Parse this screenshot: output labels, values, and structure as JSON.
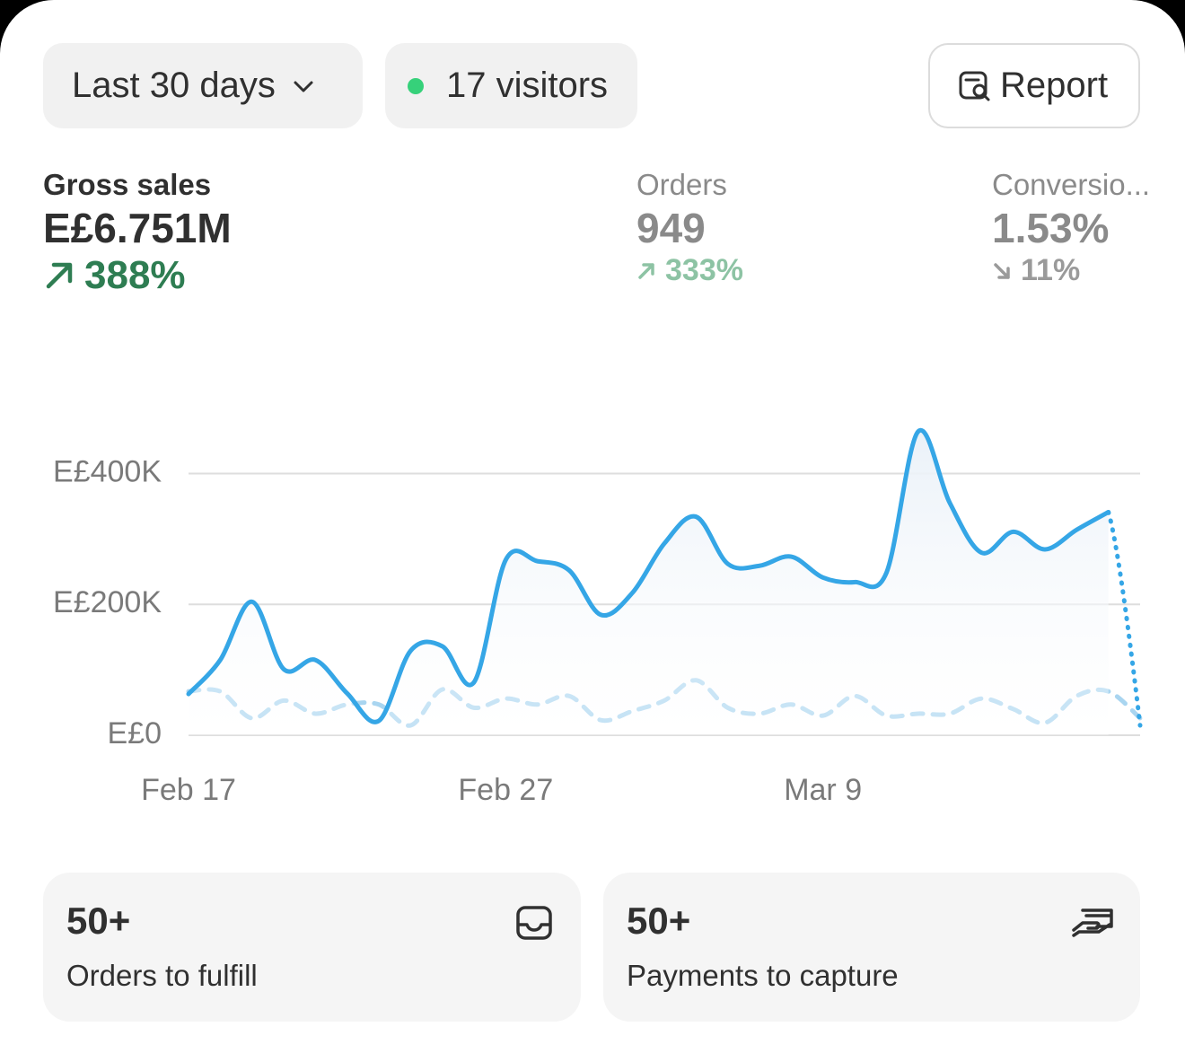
{
  "toolbar": {
    "range": "Last 30 days",
    "visitors": "17 visitors",
    "report": "Report"
  },
  "metrics": [
    {
      "label": "Gross sales",
      "value": "E£6.751M",
      "change": "388%",
      "direction": "up"
    },
    {
      "label": "Orders",
      "value": "949",
      "change": "333%",
      "direction": "up"
    },
    {
      "label": "Conversio...",
      "value": "1.53%",
      "change": "11%",
      "direction": "down"
    }
  ],
  "chart_data": {
    "type": "line",
    "categories": [
      "Feb 17",
      null,
      null,
      null,
      null,
      null,
      null,
      null,
      null,
      null,
      "Feb 27",
      null,
      null,
      null,
      null,
      null,
      null,
      null,
      null,
      null,
      "Mar 9",
      null,
      null,
      null,
      null,
      null,
      null,
      null,
      null,
      null,
      null
    ],
    "series": [
      {
        "color": "#35a6e6",
        "line_style": "solid",
        "values": [
          63000,
          115000,
          204000,
          101000,
          115000,
          64000,
          22000,
          129000,
          136000,
          81000,
          268000,
          266000,
          252000,
          184000,
          218000,
          293000,
          334000,
          262000,
          259000,
          273000,
          241000,
          234000,
          248000,
          464000,
          355000,
          279000,
          311000,
          284000,
          314000,
          341000,
          15000
        ]
      },
      {
        "color": "#a9d5f0",
        "line_style": "dashed",
        "values": [
          67000,
          67000,
          26000,
          53000,
          33000,
          47000,
          47000,
          15000,
          70000,
          42000,
          56000,
          47000,
          60000,
          23000,
          37000,
          53000,
          84000,
          42000,
          33000,
          47000,
          30000,
          60000,
          30000,
          33000,
          33000,
          56000,
          40000,
          19000,
          60000,
          67000,
          26000
        ]
      }
    ],
    "ylim": [
      0,
      520000
    ],
    "yticks": [
      {
        "value": 0,
        "label": "E£0"
      },
      {
        "value": 200000,
        "label": "E£200K"
      },
      {
        "value": 400000,
        "label": "E£400K"
      }
    ],
    "grid": true
  },
  "cards": [
    {
      "count": "50+",
      "label": "Orders to fulfill"
    },
    {
      "count": "50+",
      "label": "Payments to capture"
    }
  ]
}
